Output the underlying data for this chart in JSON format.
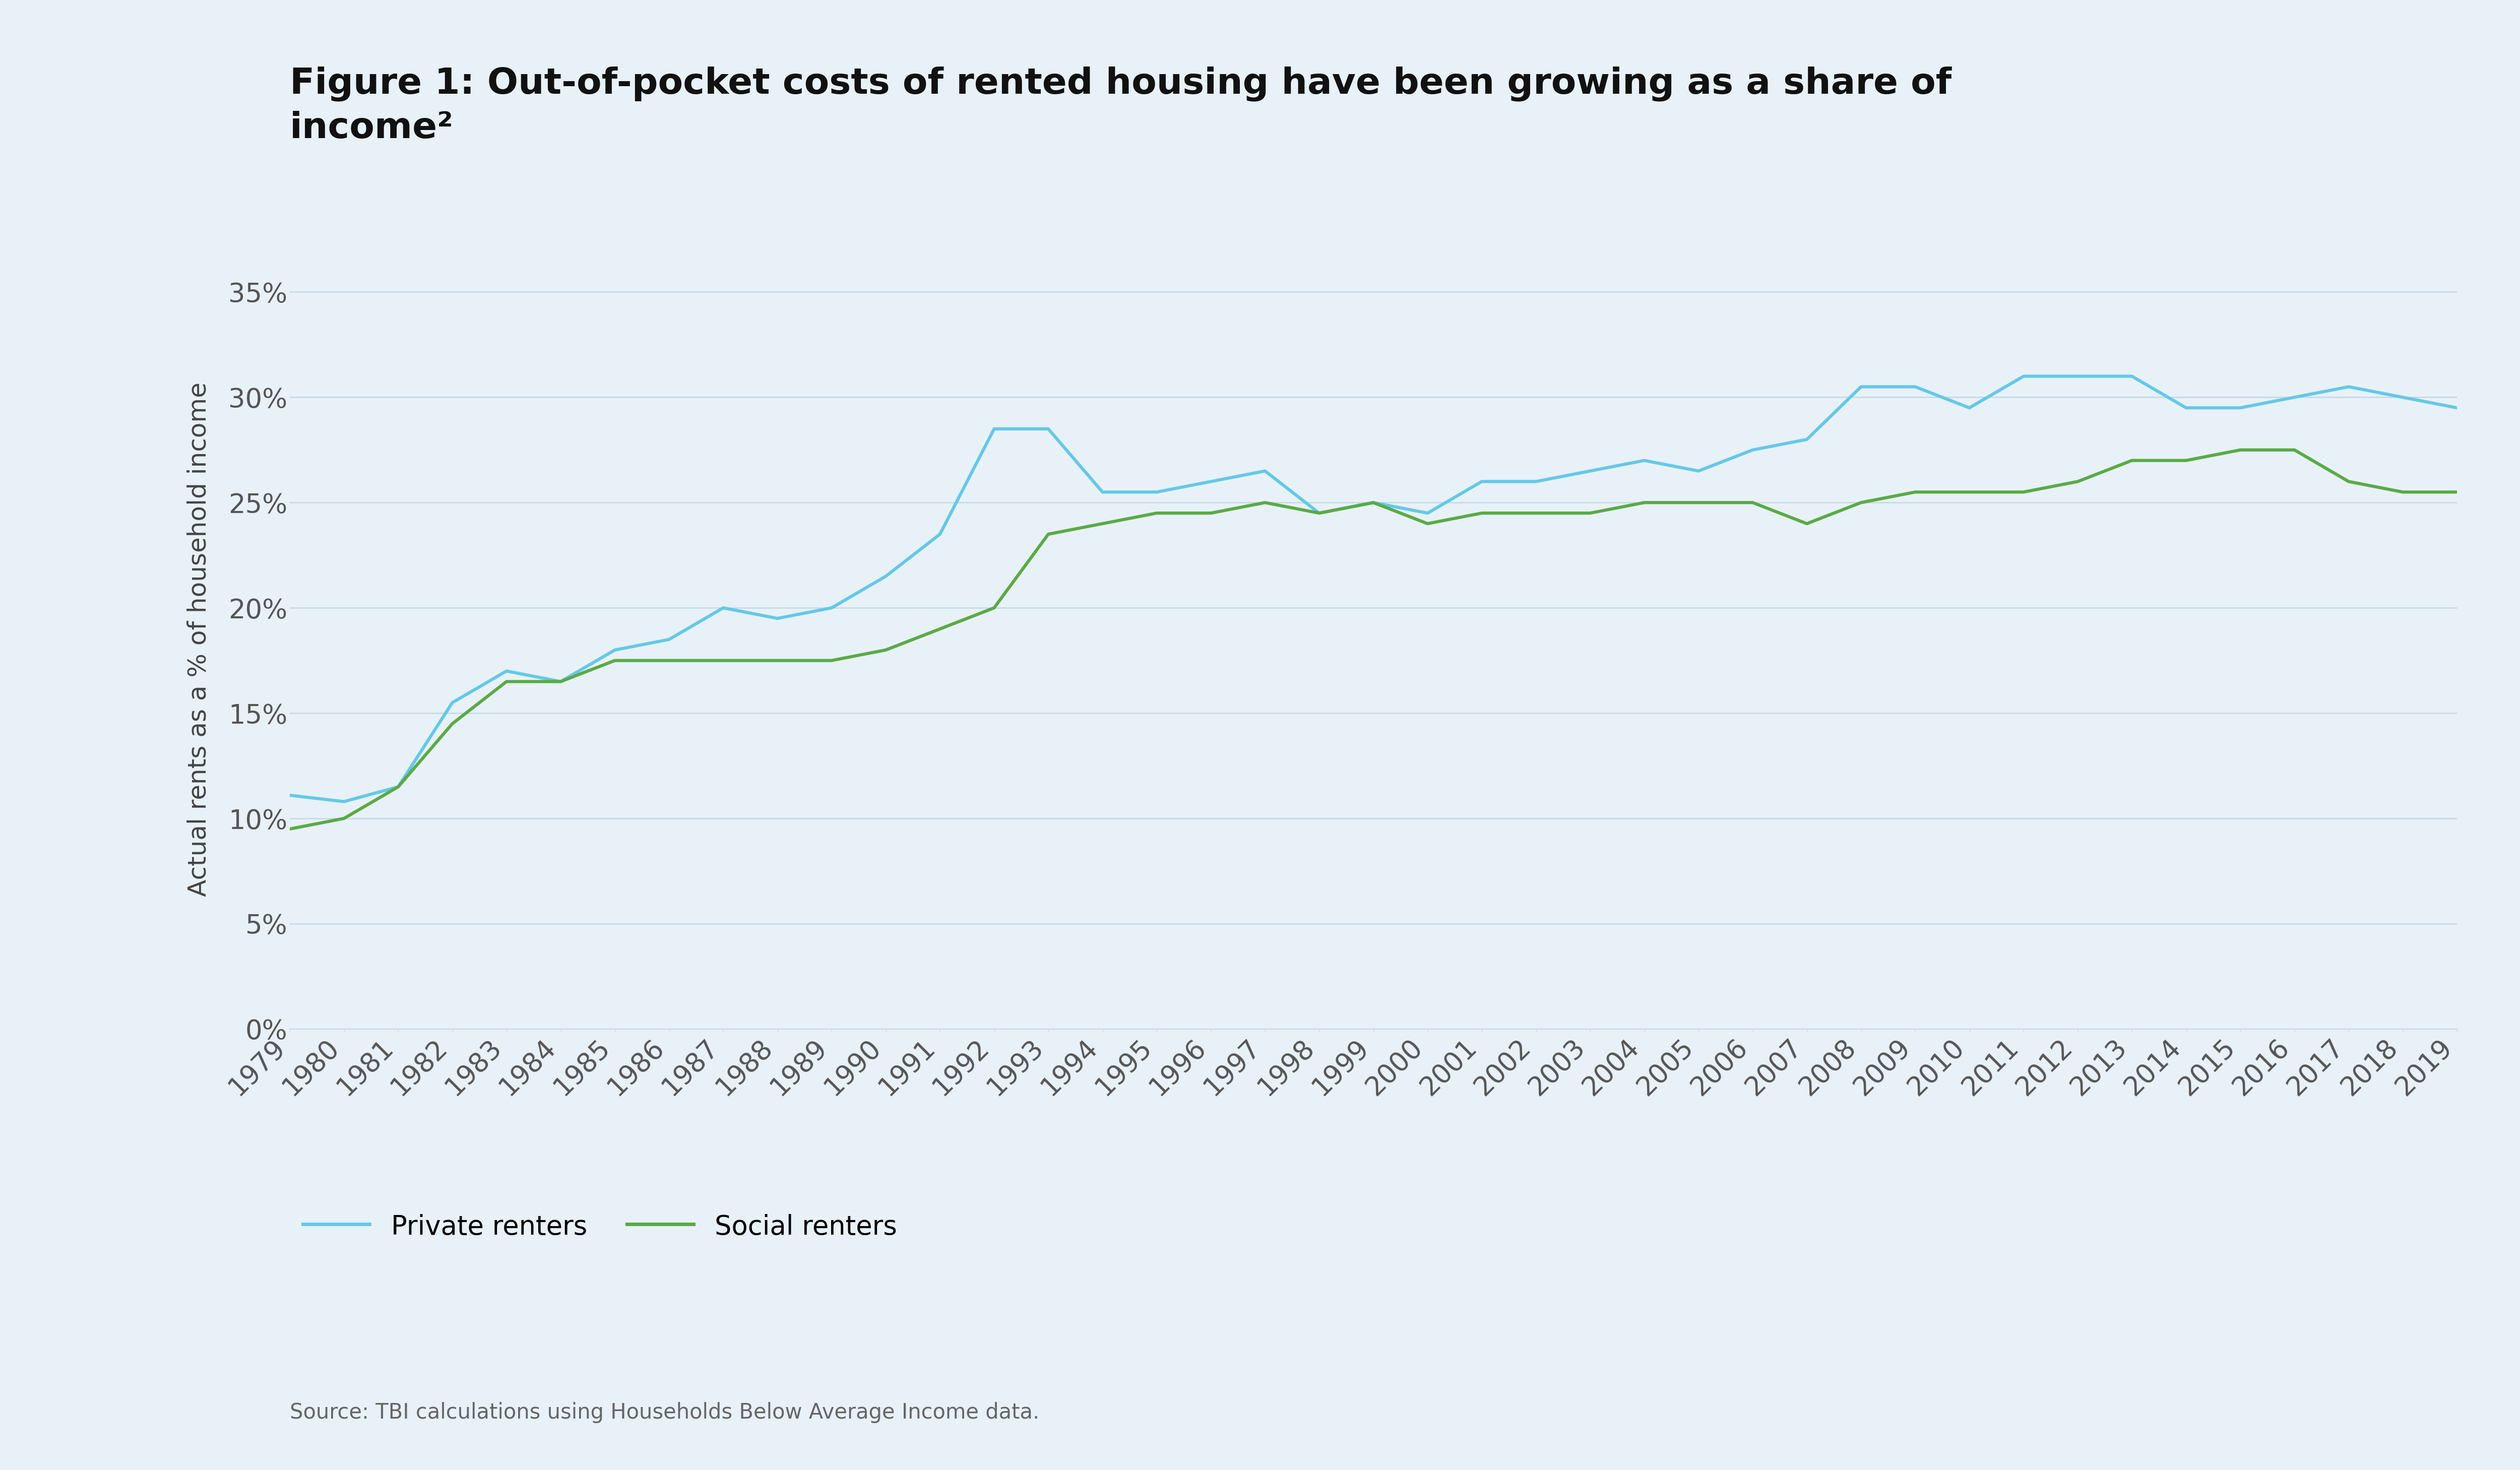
{
  "title_line1": "Figure 1: Out-of-pocket costs of rented housing have been growing as a share of",
  "title_line2": "income²",
  "ylabel": "Actual rents as a % of household income",
  "source": "Source: TBI calculations using Households Below Average Income data.",
  "background_color": "#e8f1f8",
  "years": [
    1979,
    1980,
    1981,
    1982,
    1983,
    1984,
    1985,
    1986,
    1987,
    1988,
    1989,
    1990,
    1991,
    1992,
    1993,
    1994,
    1995,
    1996,
    1997,
    1998,
    1999,
    2000,
    2001,
    2002,
    2003,
    2004,
    2005,
    2006,
    2007,
    2008,
    2009,
    2010,
    2011,
    2012,
    2013,
    2014,
    2015,
    2016,
    2017,
    2018,
    2019
  ],
  "private_renters": [
    0.111,
    0.108,
    0.115,
    0.155,
    0.17,
    0.165,
    0.18,
    0.185,
    0.2,
    0.195,
    0.2,
    0.215,
    0.235,
    0.285,
    0.285,
    0.255,
    0.255,
    0.26,
    0.265,
    0.245,
    0.25,
    0.245,
    0.26,
    0.26,
    0.265,
    0.27,
    0.265,
    0.275,
    0.28,
    0.305,
    0.305,
    0.295,
    0.31,
    0.31,
    0.31,
    0.295,
    0.295,
    0.3,
    0.305,
    0.3,
    0.295
  ],
  "social_renters": [
    0.095,
    0.1,
    0.115,
    0.145,
    0.165,
    0.165,
    0.175,
    0.175,
    0.175,
    0.175,
    0.175,
    0.18,
    0.19,
    0.2,
    0.235,
    0.24,
    0.245,
    0.245,
    0.25,
    0.245,
    0.25,
    0.24,
    0.245,
    0.245,
    0.245,
    0.25,
    0.25,
    0.25,
    0.24,
    0.25,
    0.255,
    0.255,
    0.255,
    0.26,
    0.27,
    0.27,
    0.275,
    0.275,
    0.26,
    0.255,
    0.255
  ],
  "private_color": "#64c8e8",
  "social_color": "#5aaa46",
  "grid_color": "#c5d8e4",
  "ylim": [
    0,
    0.37
  ],
  "yticks": [
    0,
    0.05,
    0.1,
    0.15,
    0.2,
    0.25,
    0.3,
    0.35
  ],
  "ytick_labels": [
    "0%",
    "5%",
    "10%",
    "15%",
    "20%",
    "25%",
    "30%",
    "35%"
  ],
  "legend_private": "Private renters",
  "legend_social": "Social renters",
  "title_fontsize": 52,
  "tick_fontsize": 38,
  "ylabel_fontsize": 36,
  "legend_fontsize": 38,
  "source_fontsize": 30
}
